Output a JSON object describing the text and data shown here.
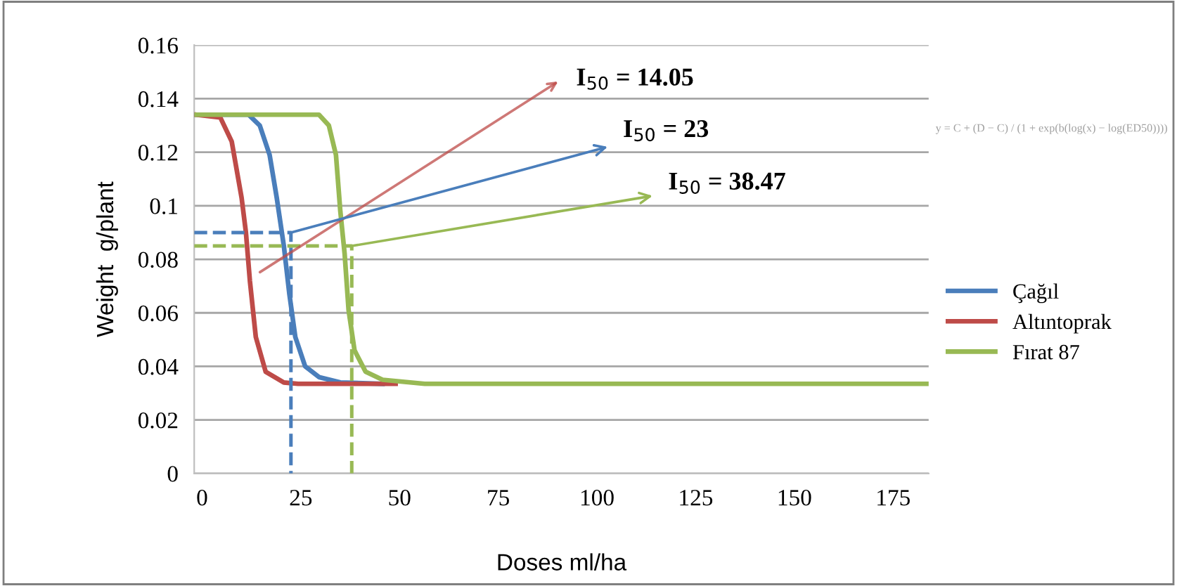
{
  "chart_data": {
    "type": "line",
    "xlabel": "Doses ml/ha",
    "ylabel": "Weight  g/plant",
    "xlim": [
      -2,
      184
    ],
    "xticks": [
      0,
      25,
      50,
      75,
      100,
      125,
      150,
      175
    ],
    "ylim": [
      0,
      0.16
    ],
    "yticks": [
      0,
      0.02,
      0.04,
      0.06,
      0.08,
      0.1,
      0.12,
      0.14,
      0.16
    ],
    "grid": "y",
    "legend": "right",
    "marker": "none",
    "line_style": "solid",
    "series": [
      {
        "name": "Çağıl",
        "color": "#4a7ebb",
        "x": [
          -1.4,
          11.8,
          14.6,
          17.1,
          18.9,
          20.7,
          22.1,
          23.6,
          26.1,
          29.6,
          35,
          45.7
        ],
        "values": [
          0.134,
          0.134,
          0.13,
          0.119,
          0.103,
          0.085,
          0.067,
          0.051,
          0.04,
          0.036,
          0.034,
          0.0335
        ]
      },
      {
        "name": "Altıntoprak",
        "color": "#be4b48",
        "x": [
          -1.4,
          4.6,
          7.5,
          10,
          11.1,
          12.1,
          13.6,
          16.1,
          20.7,
          24.3,
          49
        ],
        "values": [
          0.134,
          0.133,
          0.124,
          0.103,
          0.09,
          0.072,
          0.051,
          0.038,
          0.034,
          0.0335,
          0.0335
        ]
      },
      {
        "name": "Fırat 87",
        "color": "#98b954",
        "x": [
          -1.4,
          29.6,
          32.1,
          33.9,
          35,
          36.1,
          37.1,
          38.6,
          41.4,
          45.7,
          56.4,
          184
        ],
        "values": [
          0.134,
          0.134,
          0.13,
          0.119,
          0.098,
          0.082,
          0.061,
          0.046,
          0.038,
          0.035,
          0.0335,
          0.0335
        ]
      },
      {
        "color": "#4a7ebb",
        "line_style": "dashed",
        "x": [
          -2,
          22.5,
          22.5
        ],
        "values": [
          0.09,
          0.09,
          0
        ]
      },
      {
        "color": "#98b954",
        "line_style": "dashed",
        "x": [
          -2,
          37.9,
          37.9
        ],
        "values": [
          0.085,
          0.085,
          0
        ]
      }
    ],
    "annotations": [
      "I$_{50}$ = 14.05",
      {
        "text": "I$_{50}$ = 23",
        "x": 22.5,
        "y": 0.09
      },
      {
        "text": "I$_{50}$ = 38.47",
        "x": 37.9,
        "y": 0.085
      },
      "y = C + (D − C) / (1 + exp(b(log(x) − log(ED50))))"
    ]
  }
}
